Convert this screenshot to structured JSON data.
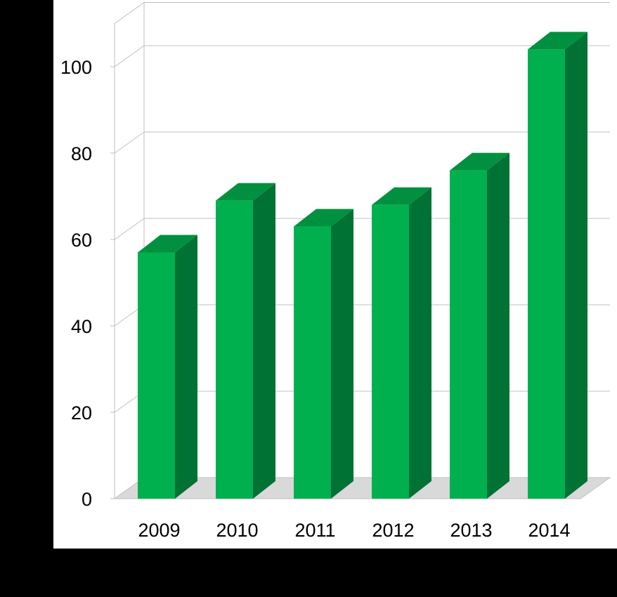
{
  "chart_data": {
    "type": "bar",
    "style": "3d-column",
    "categories": [
      "2009",
      "2010",
      "2011",
      "2012",
      "2013",
      "2014"
    ],
    "values": [
      57,
      69,
      63,
      68,
      76,
      104
    ],
    "yticks": [
      "0",
      "20",
      "40",
      "60",
      "80",
      "100"
    ],
    "ylim": [
      0,
      110
    ],
    "grid": true,
    "legend": "none",
    "colors": {
      "bar_front": "#00B04F",
      "bar_side": "#007233",
      "bar_top": "#00903F",
      "floor": "#D9D9D9",
      "gridline": "#BFBFBF",
      "plot_background": "#FFFFFF",
      "page_background": "#000000"
    }
  }
}
